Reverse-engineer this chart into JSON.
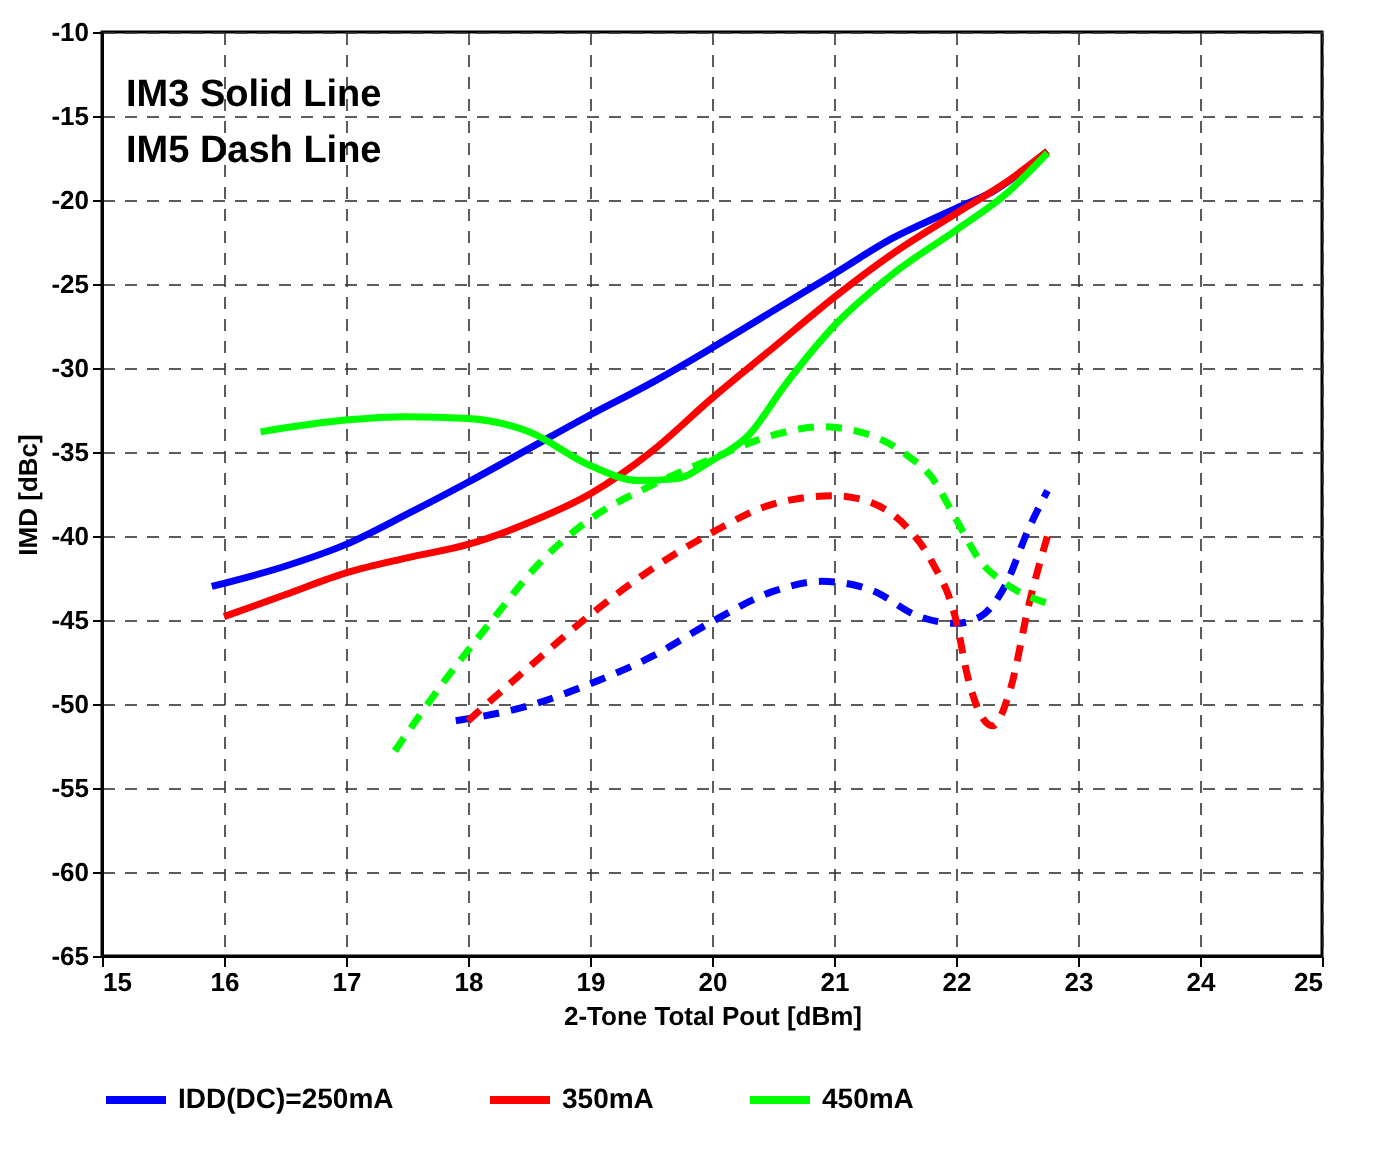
{
  "chart_data": {
    "type": "line",
    "xlabel": "2-Tone Total Pout  [dBm]",
    "ylabel": "IMD  [dBc]",
    "annotations": [
      "IM3 Solid Line",
      "IM5 Dash Line"
    ],
    "xlim": [
      15,
      25
    ],
    "xticks": [
      15,
      16,
      17,
      18,
      19,
      20,
      21,
      22,
      23,
      24,
      25
    ],
    "ylim": [
      -65,
      -10
    ],
    "yticks": [
      -65,
      -60,
      -55,
      -50,
      -45,
      -40,
      -35,
      -30,
      -25,
      -20,
      -15,
      -10
    ],
    "grid": true,
    "legend": "bottom",
    "series": [
      {
        "name": "IDD(DC)=250mA",
        "color": "#0000ff",
        "line_style": "solid",
        "x": [
          15.9,
          16.5,
          17,
          17.5,
          18,
          18.5,
          19,
          19.5,
          20,
          20.5,
          21,
          21.5,
          21.7,
          22,
          22.3,
          22.75
        ],
        "values": [
          -43,
          -41.8,
          -40.5,
          -38.7,
          -36.8,
          -34.8,
          -32.8,
          -30.9,
          -28.8,
          -26.6,
          -24.4,
          -22.2,
          -21.5,
          -20.5,
          -19.5,
          -17.1
        ]
      },
      {
        "name": "350mA",
        "color": "#ff0000",
        "line_style": "solid",
        "x": [
          16,
          16.5,
          17,
          17.5,
          18,
          18.5,
          19,
          19.5,
          20,
          20.5,
          21,
          21.5,
          22,
          22.4,
          22.75
        ],
        "values": [
          -44.8,
          -43.5,
          -42.2,
          -41.3,
          -40.5,
          -39.2,
          -37.5,
          -35,
          -31.8,
          -28.8,
          -25.8,
          -23.1,
          -20.8,
          -19,
          -17.1
        ]
      },
      {
        "name": "450mA",
        "color": "#00ff00",
        "line_style": "solid",
        "x": [
          16.3,
          17,
          17.5,
          18,
          18.5,
          19,
          19.4,
          19.7,
          20,
          20.3,
          20.6,
          21,
          21.5,
          22,
          22.4,
          22.75
        ],
        "values": [
          -33.8,
          -33.1,
          -32.9,
          -33,
          -33.8,
          -35.8,
          -36.7,
          -36.6,
          -35.5,
          -34,
          -31,
          -27.5,
          -24.3,
          -21.8,
          -19.7,
          -17.2
        ]
      },
      {
        "color": "#0000ff",
        "line_style": "dashed",
        "x": [
          17.9,
          18.5,
          19,
          19.5,
          20,
          20.5,
          20.9,
          21.3,
          21.7,
          22,
          22.2,
          22.4,
          22.6,
          22.75
        ],
        "values": [
          -51,
          -50.1,
          -48.8,
          -47.2,
          -45.1,
          -43.3,
          -42.7,
          -43.2,
          -44.8,
          -45.2,
          -44.8,
          -43,
          -39.5,
          -37.3
        ]
      },
      {
        "color": "#ff0000",
        "line_style": "dashed",
        "x": [
          18,
          18.5,
          19,
          19.5,
          20,
          20.5,
          21,
          21.3,
          21.6,
          21.8,
          22,
          22.1,
          22.3,
          22.45,
          22.6,
          22.75
        ],
        "values": [
          -51,
          -47.8,
          -44.7,
          -42,
          -39.8,
          -38.1,
          -37.6,
          -38,
          -39.5,
          -41.5,
          -45,
          -48.5,
          -51.3,
          -49,
          -44,
          -40
        ]
      },
      {
        "color": "#00ff00",
        "line_style": "dashed",
        "x": [
          17.4,
          17.8,
          18.2,
          18.6,
          19,
          19.5,
          20,
          20.5,
          20.9,
          21.3,
          21.6,
          21.8,
          22,
          22.2,
          22.4,
          22.75
        ],
        "values": [
          -52.8,
          -48.7,
          -45,
          -41.5,
          -39,
          -37,
          -35.4,
          -34,
          -33.5,
          -34,
          -35.2,
          -36.5,
          -39,
          -41.5,
          -42.8,
          -44
        ]
      }
    ]
  }
}
